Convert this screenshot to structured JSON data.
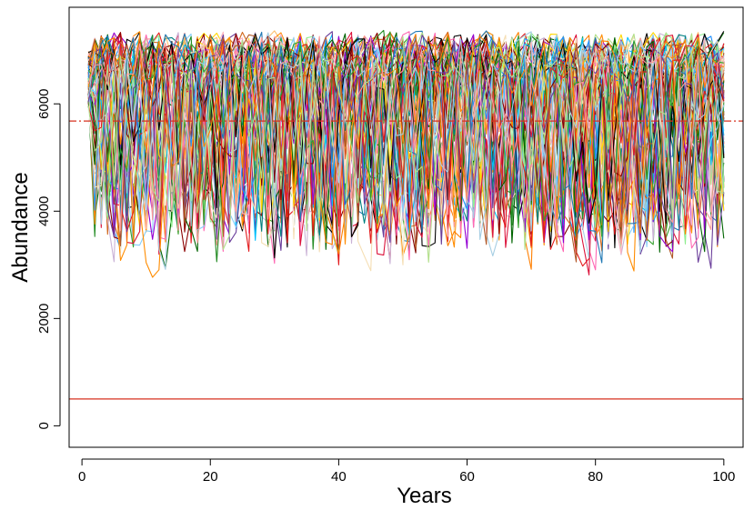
{
  "chart_data": {
    "type": "line",
    "title": "",
    "xlabel": "Years",
    "ylabel": "Abundance",
    "xlim": [
      -2,
      103
    ],
    "ylim": [
      -400,
      7800
    ],
    "x_ticks": [
      "0",
      "20",
      "40",
      "60",
      "80",
      "100"
    ],
    "y_ticks": [
      "0",
      "2000",
      "4000",
      "6000"
    ],
    "x_tick_values": [
      0,
      20,
      40,
      60,
      80,
      100
    ],
    "y_tick_values": [
      0,
      2000,
      4000,
      6000
    ],
    "x_range": [
      1,
      100
    ],
    "simulation_lines": {
      "count": 100,
      "start_range": [
        5900,
        7000
      ],
      "upper_band": [
        6400,
        7400
      ],
      "lower_envelope_min": 2050,
      "typical_range": [
        3500,
        7200
      ],
      "colors": [
        "#000000",
        "#e31a1c",
        "#1f78b4",
        "#33a02c",
        "#ff7f00",
        "#6a3d9a",
        "#b15928",
        "#a6cee3",
        "#fb9a99",
        "#b2df8a",
        "#fdbf6f",
        "#cab2d6",
        "#8b0000",
        "#008080",
        "#ff69b4",
        "#ffd700",
        "#00bfff",
        "#228b22",
        "#d2691e",
        "#9400d3",
        "#ffffff",
        "#1e90ff",
        "#dc143c",
        "#006400",
        "#ff8c00",
        "#ffb6c1",
        "#87cefa",
        "#90ee90",
        "#f5deb3",
        "#800000"
      ]
    },
    "reference_lines": [
      {
        "y": 5680,
        "style": "dashdot",
        "color": "#d7301f"
      },
      {
        "y": 500,
        "style": "solid",
        "color": "#d7301f"
      }
    ],
    "grid": false,
    "legend": "none"
  }
}
